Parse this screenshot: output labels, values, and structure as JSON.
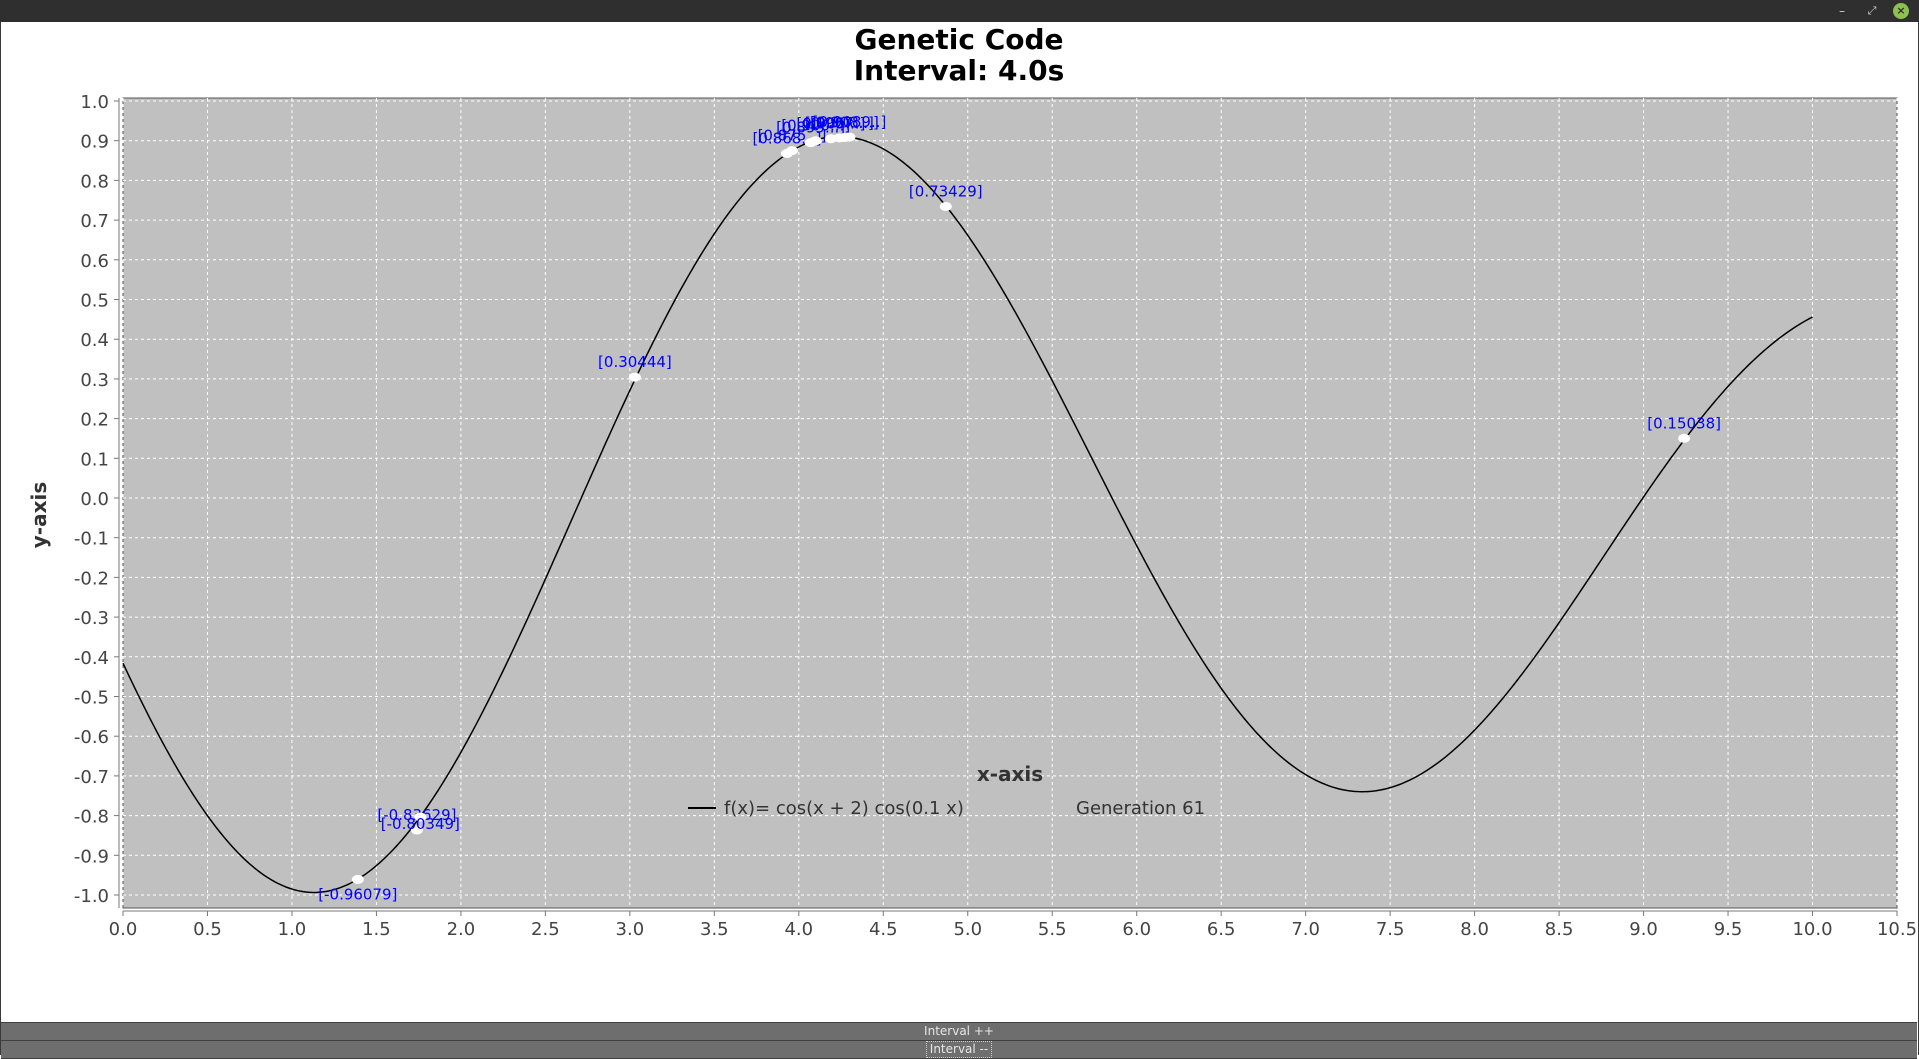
{
  "window": {
    "minimize_glyph": "–",
    "maximize_glyph": "⤢",
    "close_glyph": "×"
  },
  "chart_data": {
    "type": "line",
    "title": "Genetic Code",
    "subtitle": "Interval: 4.0s",
    "xlabel": "x-axis",
    "ylabel": "y-axis",
    "xlim": [
      0.0,
      10.5
    ],
    "ylim": [
      -1.05,
      1.0
    ],
    "x_ticks": [
      "0.0",
      "0.5",
      "1.0",
      "1.5",
      "2.0",
      "2.5",
      "3.0",
      "3.5",
      "4.0",
      "4.5",
      "5.0",
      "5.5",
      "6.0",
      "6.5",
      "7.0",
      "7.5",
      "8.0",
      "8.5",
      "9.0",
      "9.5",
      "10.0",
      "10.5"
    ],
    "y_ticks": [
      "1.0",
      "0.9",
      "0.8",
      "0.7",
      "0.6",
      "0.5",
      "0.4",
      "0.3",
      "0.2",
      "0.1",
      "0.0",
      "-0.1",
      "-0.2",
      "-0.3",
      "-0.4",
      "-0.5",
      "-0.6",
      "-0.7",
      "-0.8",
      "-0.9",
      "-1.0"
    ],
    "grid": true,
    "background_color": "#c0c0c0",
    "curve_color": "#000000",
    "label_color": "#0000ff",
    "series": [
      {
        "name": "f(x)= cos(x + 2) cos(0.1 x)",
        "function": "cos(x + 2) cos(0.1 x)",
        "x_range": [
          0.0,
          10.0
        ]
      }
    ],
    "legend": {
      "position": "bottom",
      "series_label": "f(x)= cos(x + 2) cos(0.1 x)",
      "extra_label": "Generation 61"
    },
    "points": [
      {
        "x": 1.39,
        "y": -0.96079,
        "label": "[-0.96079]"
      },
      {
        "x": 1.74,
        "y": -0.83629,
        "label": "[-0.83629]"
      },
      {
        "x": 1.76,
        "y": -0.80349,
        "label": "[-0.80349]"
      },
      {
        "x": 3.03,
        "y": 0.30444,
        "label": "[0.30444]"
      },
      {
        "x": 3.93,
        "y": 0.868,
        "label": "[0.868...]"
      },
      {
        "x": 3.96,
        "y": 0.875,
        "label": "[0.875...]"
      },
      {
        "x": 4.07,
        "y": 0.895,
        "label": "[0.895...]"
      },
      {
        "x": 4.1,
        "y": 0.9,
        "label": "[0.900...]"
      },
      {
        "x": 4.19,
        "y": 0.905,
        "label": "[0.905...]"
      },
      {
        "x": 4.24,
        "y": 0.907,
        "label": "[0.907...]"
      },
      {
        "x": 4.27,
        "y": 0.908,
        "label": "[0.908...]"
      },
      {
        "x": 4.3,
        "y": 0.9089,
        "label": "[0.9089..]"
      },
      {
        "x": 4.87,
        "y": 0.73429,
        "label": "[0.73429]"
      },
      {
        "x": 9.24,
        "y": 0.15038,
        "label": "[0.15038]"
      }
    ]
  },
  "controls": {
    "interval_inc": "Interval ++",
    "interval_dec": "Interval --"
  }
}
